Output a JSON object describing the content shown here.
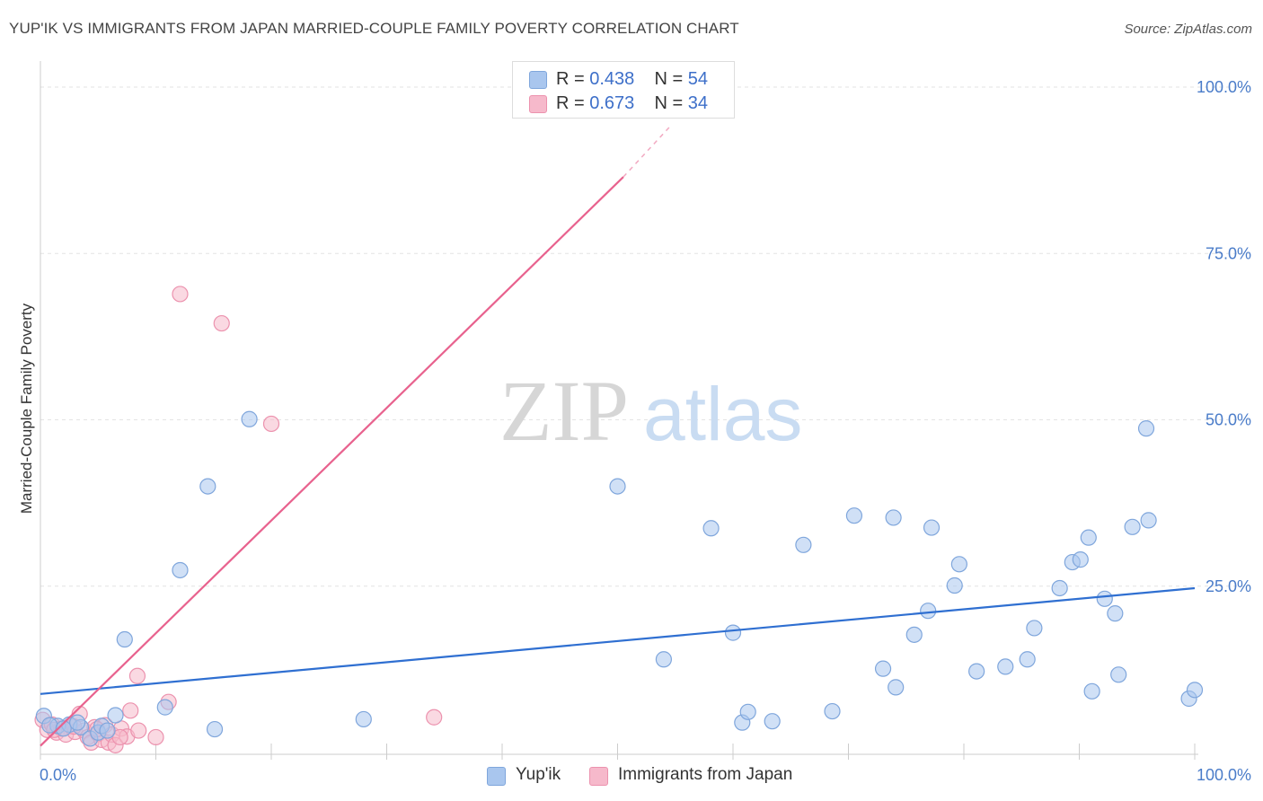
{
  "title": "YUP'IK VS IMMIGRANTS FROM JAPAN MARRIED-COUPLE FAMILY POVERTY CORRELATION CHART",
  "source": "Source: ZipAtlas.com",
  "watermark": {
    "zip": "ZIP",
    "atlas": "atlas"
  },
  "legend": {
    "r_label": "R =",
    "n_label": "N =",
    "series": [
      {
        "name": "Yup'ik",
        "r": "0.438",
        "n": "54",
        "color": "#a9c6ee",
        "edge": "#7fa6dc",
        "line": "#2f6fd1"
      },
      {
        "name": "Immigrants from Japan",
        "r": "0.673",
        "n": "34",
        "color": "#f6b9cb",
        "edge": "#ec92ae",
        "line": "#e8628e"
      }
    ]
  },
  "chart_data": {
    "type": "scatter",
    "title": "YUP'IK VS IMMIGRANTS FROM JAPAN MARRIED-COUPLE FAMILY POVERTY CORRELATION CHART",
    "xlabel": "",
    "ylabel": "Married-Couple Family Poverty",
    "xlim": [
      0,
      100
    ],
    "ylim": [
      0,
      100
    ],
    "x_tick_labels": [
      "0.0%",
      "100.0%"
    ],
    "y_tick_labels": [
      "25.0%",
      "50.0%",
      "75.0%",
      "100.0%"
    ],
    "y_tick_values": [
      25,
      50,
      75,
      100
    ],
    "series": [
      {
        "name": "Yup'ik",
        "points": [
          [
            0.3,
            5.5
          ],
          [
            1.5,
            4.0
          ],
          [
            2.5,
            4.2
          ],
          [
            3.5,
            3.8
          ],
          [
            4.3,
            2.1
          ],
          [
            5.0,
            3.0
          ],
          [
            5.3,
            4.0
          ],
          [
            6.5,
            5.6
          ],
          [
            7.3,
            17.0
          ],
          [
            10.8,
            6.8
          ],
          [
            12.1,
            27.4
          ],
          [
            14.5,
            40.0
          ],
          [
            15.1,
            3.5
          ],
          [
            18.1,
            50.1
          ],
          [
            28.0,
            5.0
          ],
          [
            50.0,
            40.0
          ],
          [
            54.0,
            14.0
          ],
          [
            58.1,
            33.7
          ],
          [
            60.0,
            18.0
          ],
          [
            60.8,
            4.5
          ],
          [
            61.3,
            6.1
          ],
          [
            63.4,
            4.7
          ],
          [
            66.1,
            31.2
          ],
          [
            68.6,
            6.2
          ],
          [
            70.5,
            35.6
          ],
          [
            73.0,
            12.6
          ],
          [
            73.9,
            35.3
          ],
          [
            74.1,
            9.8
          ],
          [
            75.7,
            17.7
          ],
          [
            76.9,
            21.3
          ],
          [
            77.2,
            33.8
          ],
          [
            79.2,
            25.1
          ],
          [
            79.6,
            28.3
          ],
          [
            81.1,
            12.2
          ],
          [
            83.6,
            12.9
          ],
          [
            85.5,
            14.0
          ],
          [
            86.1,
            18.7
          ],
          [
            88.3,
            24.7
          ],
          [
            89.4,
            28.6
          ],
          [
            90.1,
            29.0
          ],
          [
            90.8,
            32.3
          ],
          [
            91.1,
            9.2
          ],
          [
            92.2,
            23.1
          ],
          [
            93.1,
            20.9
          ],
          [
            93.4,
            11.7
          ],
          [
            94.6,
            33.9
          ],
          [
            95.8,
            48.7
          ],
          [
            96.0,
            34.9
          ],
          [
            99.5,
            8.1
          ],
          [
            100.0,
            9.4
          ],
          [
            0.8,
            4.1
          ],
          [
            2.0,
            3.6
          ],
          [
            3.2,
            4.5
          ],
          [
            5.8,
            3.3
          ]
        ],
        "trendline": {
          "x": [
            0,
            100
          ],
          "y": [
            8.8,
            24.7
          ]
        }
      },
      {
        "name": "Immigrants from Japan",
        "points": [
          [
            0.2,
            4.9
          ],
          [
            0.6,
            3.4
          ],
          [
            1.0,
            4.2
          ],
          [
            1.4,
            3.0
          ],
          [
            1.8,
            3.6
          ],
          [
            2.2,
            2.7
          ],
          [
            2.6,
            4.0
          ],
          [
            3.0,
            3.1
          ],
          [
            3.4,
            5.8
          ],
          [
            3.8,
            3.3
          ],
          [
            4.1,
            2.3
          ],
          [
            4.4,
            1.5
          ],
          [
            4.7,
            3.8
          ],
          [
            5.0,
            2.8
          ],
          [
            5.3,
            1.9
          ],
          [
            5.6,
            4.1
          ],
          [
            5.9,
            1.5
          ],
          [
            6.2,
            2.7
          ],
          [
            6.5,
            1.1
          ],
          [
            7.0,
            3.6
          ],
          [
            7.5,
            2.4
          ],
          [
            7.8,
            6.3
          ],
          [
            8.5,
            3.3
          ],
          [
            10.0,
            2.3
          ],
          [
            11.1,
            7.6
          ],
          [
            8.4,
            11.5
          ],
          [
            12.1,
            68.9
          ],
          [
            15.7,
            64.5
          ],
          [
            20.0,
            49.4
          ],
          [
            34.1,
            5.3
          ],
          [
            2.9,
            3.9
          ],
          [
            1.2,
            3.4
          ],
          [
            4.9,
            3.5
          ],
          [
            6.9,
            2.3
          ]
        ],
        "trendline": {
          "x": [
            0,
            50.5
          ],
          "y": [
            1.0,
            86.5
          ]
        },
        "trendline_dashed": {
          "x": [
            50.5,
            54.5
          ],
          "y": [
            86.5,
            94.0
          ]
        }
      }
    ]
  }
}
